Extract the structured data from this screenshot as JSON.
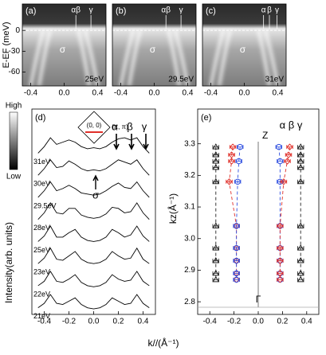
{
  "colorbar": {
    "high": "High",
    "low": "Low"
  },
  "chart_data": [
    {
      "type": "image",
      "label": "(a)",
      "photon_energy": "25eV",
      "ylabel": "E-EF (meV)",
      "xlim": [
        -0.5,
        0.5
      ],
      "xticks": [
        -0.4,
        {
          "value": 0,
          "label": "0.0"
        },
        0.4
      ],
      "ylim": [
        -80,
        38
      ],
      "yticks": [
        0,
        -30,
        -60
      ],
      "annotations": [
        "αβ",
        "γ",
        "σ"
      ]
    },
    {
      "type": "image",
      "label": "(b)",
      "photon_energy": "29.5eV",
      "xlim": [
        -0.5,
        0.5
      ],
      "xticks": [
        -0.4,
        {
          "value": 0,
          "label": "0.0"
        },
        0.4
      ],
      "ylim": [
        -80,
        38
      ],
      "annotations": [
        "αβ",
        "γ",
        "σ"
      ]
    },
    {
      "type": "image",
      "label": "(c)",
      "photon_energy": "31eV",
      "xlim": [
        -0.5,
        0.5
      ],
      "xticks": [
        -0.4,
        {
          "value": 0,
          "label": "0.0"
        },
        0.4
      ],
      "ylim": [
        -80,
        38
      ],
      "annotations": [
        "α",
        "β",
        "γ",
        "σ"
      ]
    },
    {
      "type": "line",
      "label": "(d)",
      "ylabel": "Intensity(arb. units)",
      "xlabel": "k//(Å⁻¹)",
      "xlim": [
        -0.5,
        0.5
      ],
      "xticks": [
        -0.4,
        -0.2,
        {
          "value": 0,
          "label": "0.0"
        },
        0.2,
        0.4
      ],
      "ylim": [
        0,
        9.3
      ],
      "inset": [
        "(0, 0)",
        "(π, π)"
      ],
      "annotations": [
        "α",
        "β",
        "γ",
        "σ"
      ],
      "x": [
        -0.45,
        -0.4,
        -0.35,
        -0.3,
        -0.25,
        -0.2,
        -0.15,
        -0.1,
        -0.05,
        0,
        0.05,
        0.1,
        0.15,
        0.2,
        0.25,
        0.3,
        0.35,
        0.4,
        0.45
      ],
      "series": [
        {
          "name": "21eV",
          "values": [
            0.3,
            0.5,
            0.9,
            0.5,
            0.45,
            0.6,
            0.75,
            0.45,
            0.3,
            0.25,
            0.3,
            0.45,
            0.75,
            0.6,
            0.45,
            0.5,
            0.9,
            0.5,
            0.3
          ]
        },
        {
          "name": "22eV",
          "values": [
            1.3,
            1.5,
            1.95,
            1.5,
            1.45,
            1.6,
            1.8,
            1.45,
            1.3,
            1.25,
            1.3,
            1.45,
            1.8,
            1.6,
            1.5,
            1.55,
            1.95,
            1.5,
            1.3
          ]
        },
        {
          "name": "23eV",
          "values": [
            2.3,
            2.55,
            3.0,
            2.5,
            2.45,
            2.65,
            2.85,
            2.5,
            2.35,
            2.3,
            2.35,
            2.5,
            2.85,
            2.65,
            2.5,
            2.55,
            3.0,
            2.5,
            2.3
          ]
        },
        {
          "name": "25eV",
          "values": [
            3.3,
            3.55,
            4.0,
            3.5,
            3.5,
            3.7,
            3.85,
            3.5,
            3.35,
            3.3,
            3.35,
            3.5,
            3.85,
            3.7,
            3.5,
            3.6,
            4.0,
            3.55,
            3.3
          ]
        },
        {
          "name": "28eV",
          "values": [
            4.3,
            4.6,
            5.05,
            4.6,
            4.55,
            4.8,
            4.8,
            4.5,
            4.4,
            4.35,
            4.4,
            4.55,
            4.85,
            4.8,
            4.6,
            4.65,
            5.05,
            4.6,
            4.3
          ]
        },
        {
          "name": "29.5eV",
          "values": [
            5.3,
            5.6,
            6.0,
            5.6,
            5.7,
            5.85,
            5.7,
            5.5,
            5.45,
            5.4,
            5.45,
            5.6,
            5.8,
            5.95,
            5.75,
            5.7,
            6.0,
            5.6,
            5.3
          ]
        },
        {
          "name": "30eV",
          "values": [
            6.3,
            6.6,
            7.0,
            6.65,
            6.7,
            6.95,
            6.8,
            6.6,
            6.5,
            6.55,
            6.5,
            6.6,
            6.8,
            7.0,
            6.9,
            6.8,
            7.0,
            6.6,
            6.3
          ]
        },
        {
          "name": "31eV",
          "values": [
            7.3,
            7.6,
            8.0,
            7.7,
            7.8,
            7.9,
            7.8,
            7.6,
            7.5,
            7.55,
            7.5,
            7.6,
            7.8,
            7.95,
            8.0,
            7.9,
            8.0,
            7.6,
            7.3
          ]
        }
      ]
    },
    {
      "type": "scatter",
      "label": "(e)",
      "ylabel": "kz(Å⁻¹)",
      "annotations": [
        "Z",
        "Γ",
        "α β γ"
      ],
      "xlim": [
        -0.5,
        0.5
      ],
      "xticks": [
        -0.4,
        -0.2,
        {
          "value": 0,
          "label": "0.0"
        },
        0.2,
        0.4
      ],
      "ylim": [
        2.76,
        3.41
      ],
      "yticks": [
        2.8,
        2.9,
        {
          "value": 3,
          "label": "3.0"
        },
        3.1,
        3.2,
        3.3
      ],
      "series": [
        {
          "marker": "triangle",
          "color": "#222222",
          "xerr": 0.025,
          "x": [
            -0.35,
            -0.35,
            -0.35,
            -0.35,
            -0.35,
            -0.35,
            -0.35,
            -0.35,
            -0.35,
            -0.35
          ],
          "y": [
            3.29,
            3.265,
            3.245,
            3.225,
            3.18,
            3.04,
            2.97,
            2.93,
            2.89,
            2.87
          ]
        },
        {
          "marker": "diamond",
          "color": "#e0302a",
          "xerr": 0.025,
          "x": [
            -0.21,
            -0.22,
            -0.22,
            -0.24,
            -0.18,
            -0.18,
            -0.18,
            -0.18,
            -0.18
          ],
          "y": [
            3.29,
            3.265,
            3.245,
            3.18,
            3.04,
            2.97,
            2.93,
            2.89,
            2.87
          ]
        },
        {
          "marker": "circle",
          "color": "#3050e0",
          "xerr": 0.025,
          "x": [
            -0.15,
            -0.16,
            -0.17,
            -0.18,
            -0.18,
            -0.18,
            -0.18,
            -0.18
          ],
          "y": [
            3.29,
            3.245,
            3.18,
            3.04,
            2.97,
            2.93,
            2.89,
            2.87
          ]
        },
        {
          "marker": "circle",
          "color": "#3050e0",
          "xerr": 0.025,
          "x": [
            0.17,
            0.18,
            0.18,
            0.18,
            0.18,
            0.18,
            0.18,
            0.18
          ],
          "y": [
            3.29,
            3.245,
            3.18,
            3.04,
            2.97,
            2.93,
            2.89,
            2.87
          ]
        },
        {
          "marker": "diamond",
          "color": "#e0302a",
          "xerr": 0.025,
          "x": [
            0.26,
            0.25,
            0.24,
            0.21,
            0.18,
            0.18,
            0.18,
            0.18,
            0.18
          ],
          "y": [
            3.29,
            3.265,
            3.245,
            3.18,
            3.04,
            2.97,
            2.93,
            2.89,
            2.87
          ]
        },
        {
          "marker": "triangle",
          "color": "#222222",
          "xerr": 0.025,
          "x": [
            0.35,
            0.35,
            0.35,
            0.35,
            0.35,
            0.35,
            0.35,
            0.35,
            0.35,
            0.35
          ],
          "y": [
            3.29,
            3.265,
            3.245,
            3.225,
            3.18,
            3.04,
            2.97,
            2.93,
            2.89,
            2.87
          ]
        }
      ]
    }
  ]
}
